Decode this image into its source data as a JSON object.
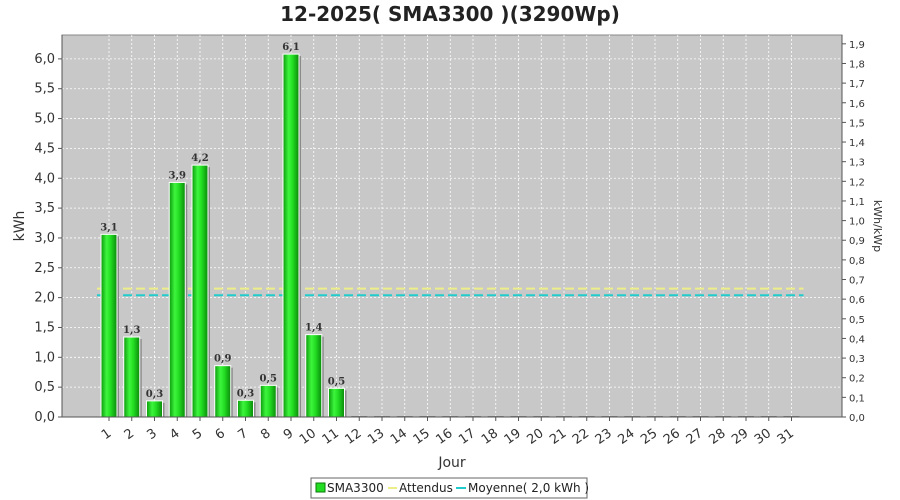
{
  "chart_data": {
    "type": "bar",
    "title": "12-2025( SMA3300 )(3290Wp)",
    "xlabel": "Jour",
    "ylabel": "kWh",
    "ylabel_right": "kWh/kWp",
    "categories": [
      "1",
      "2",
      "3",
      "4",
      "5",
      "6",
      "7",
      "8",
      "9",
      "10",
      "11",
      "12",
      "13",
      "14",
      "15",
      "16",
      "17",
      "18",
      "19",
      "20",
      "21",
      "22",
      "23",
      "24",
      "25",
      "26",
      "27",
      "28",
      "29",
      "30",
      "31"
    ],
    "series": [
      {
        "name": "SMA3300",
        "type": "bar",
        "color": "#22dd22",
        "values": [
          3.06,
          1.34,
          0.27,
          3.93,
          4.22,
          0.86,
          0.28,
          0.53,
          6.08,
          1.38,
          0.48,
          0,
          0,
          0,
          0,
          0,
          0,
          0,
          0,
          0,
          0,
          0,
          0,
          0,
          0,
          0,
          0,
          0,
          0,
          0,
          0
        ],
        "labels": [
          "3,1",
          "1,3",
          "0,3",
          "3,9",
          "4,2",
          "0,9",
          "0,3",
          "0,5",
          "6,1",
          "1,4",
          "0,5"
        ]
      },
      {
        "name": "Attendus",
        "type": "line",
        "color": "#eeee88",
        "value": 2.15
      },
      {
        "name": "Moyenne( 2,0 kWh )",
        "type": "line",
        "color": "#22cccc",
        "value": 2.04
      }
    ],
    "ylim": [
      0,
      6.4
    ],
    "yticks": [
      "0,0",
      "0,5",
      "1,0",
      "1,5",
      "2,0",
      "2,5",
      "3,0",
      "3,5",
      "4,0",
      "4,5",
      "5,0",
      "5,5",
      "6,0"
    ],
    "ylim_right": [
      0,
      1.945
    ],
    "yticks_right": [
      "0,0",
      "0,1",
      "0,2",
      "0,3",
      "0,4",
      "0,5",
      "0,6",
      "0,7",
      "0,8",
      "0,9",
      "1,0",
      "1,1",
      "1,2",
      "1,3",
      "1,4",
      "1,5",
      "1,6",
      "1,7",
      "1,8",
      "1,9"
    ],
    "grid": true,
    "legend_position": "bottom",
    "plot_background": "#c8c8c8"
  }
}
